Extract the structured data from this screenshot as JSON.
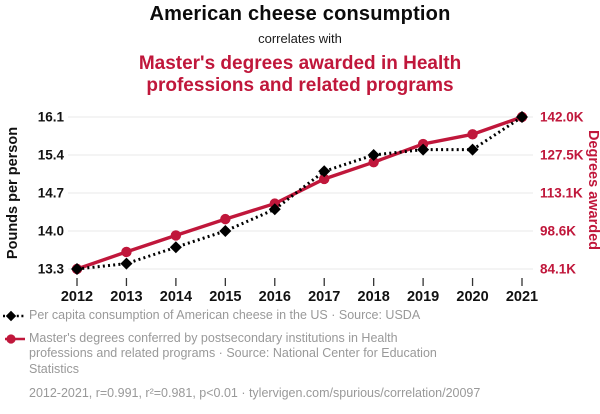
{
  "header": {
    "title": "American cheese consumption",
    "connector": "correlates with",
    "subtitle": "Master's degrees awarded in Health professions and related programs"
  },
  "colors": {
    "accent_red": "#C0173B",
    "series_black": "#000000",
    "grid": "#e8e8e8",
    "tick": "#333333",
    "legend_gray": "#999999"
  },
  "icons": {
    "cheese_series_legend": "diamond-with-dotted-line",
    "degrees_series_legend": "circle-with-solid-line"
  },
  "chart_data": {
    "type": "line",
    "title": "American cheese consumption correlates with Master's degrees awarded in Health professions and related programs",
    "x": [
      2012,
      2013,
      2014,
      2015,
      2016,
      2017,
      2018,
      2019,
      2020,
      2021
    ],
    "series": [
      {
        "name": "Master's degrees conferred by postsecondary institutions in Health professions and related programs",
        "source": "National Center for Education Statistics",
        "axis": "right",
        "color": "#C0173B",
        "marker": "circle",
        "line_style": "solid",
        "values_thousands": [
          84.1,
          90.6,
          96.9,
          103.1,
          109.0,
          118.4,
          124.8,
          131.7,
          135.4,
          142.0
        ]
      },
      {
        "name": "Per capita consumption of American cheese in the US",
        "source": "USDA",
        "axis": "left",
        "color": "#000000",
        "marker": "diamond",
        "line_style": "dotted",
        "values": [
          13.3,
          13.4,
          13.7,
          14.0,
          14.4,
          15.1,
          15.4,
          15.5,
          15.5,
          16.1
        ]
      }
    ],
    "left_axis": {
      "label": "Pounds per person",
      "tick_values": [
        13.3,
        14.0,
        14.7,
        15.4,
        16.1
      ],
      "tick_labels": [
        "13.3",
        "14.0",
        "14.7",
        "15.4",
        "16.1"
      ],
      "range": [
        13.3,
        16.1
      ]
    },
    "right_axis": {
      "label": "Degrees awarded",
      "tick_values_thousands": [
        84.1,
        98.6,
        113.1,
        127.5,
        142.0
      ],
      "tick_labels": [
        "84.1K",
        "98.6K",
        "113.1K",
        "127.5K",
        "142.0K"
      ],
      "range_thousands": [
        84.1,
        142.0
      ]
    },
    "grid": "horizontal",
    "legend_position": "bottom"
  },
  "legend": {
    "items": [
      {
        "label": "Per capita consumption of American cheese in the US · Source: USDA"
      },
      {
        "label": "Master's degrees conferred by postsecondary institutions in Health professions and related programs · Source: National Center for Education Statistics"
      }
    ]
  },
  "footer": {
    "text": "2012-2021, r=0.991, r²=0.981, p<0.01 · tylervigen.com/spurious/correlation/20097"
  }
}
